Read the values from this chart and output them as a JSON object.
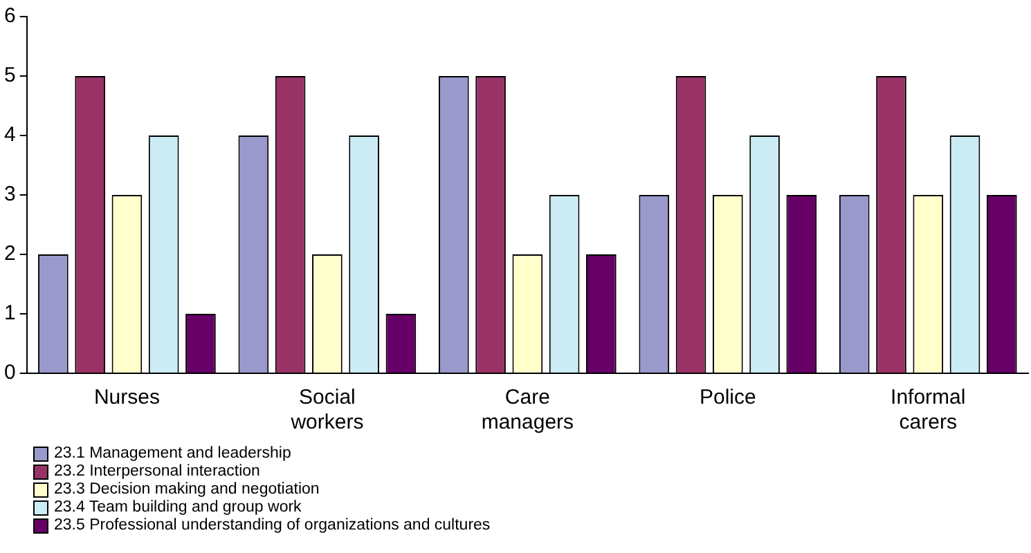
{
  "chart_data": {
    "type": "bar",
    "categories": [
      "Nurses",
      "Social workers",
      "Care managers",
      "Police",
      "Informal carers"
    ],
    "series": [
      {
        "name": "23.1 Management and leadership",
        "color": "#9999cc",
        "values": [
          2,
          4,
          5,
          3,
          3
        ]
      },
      {
        "name": "23.2 Interpersonal interaction",
        "color": "#993366",
        "values": [
          5,
          5,
          5,
          5,
          5
        ]
      },
      {
        "name": "23.3 Decision making and negotiation",
        "color": "#ffffcc",
        "values": [
          3,
          2,
          2,
          3,
          3
        ]
      },
      {
        "name": "23.4 Team building and group work",
        "color": "#ccecf5",
        "values": [
          4,
          4,
          3,
          4,
          4
        ]
      },
      {
        "name": "23.5 Professional understanding of organizations and cultures",
        "color": "#660066",
        "values": [
          1,
          1,
          2,
          3,
          3
        ]
      }
    ],
    "ylim": [
      0,
      6
    ],
    "yticks": [
      0,
      1,
      2,
      3,
      4,
      5,
      6
    ],
    "grid": false,
    "legend": "bottom left"
  }
}
